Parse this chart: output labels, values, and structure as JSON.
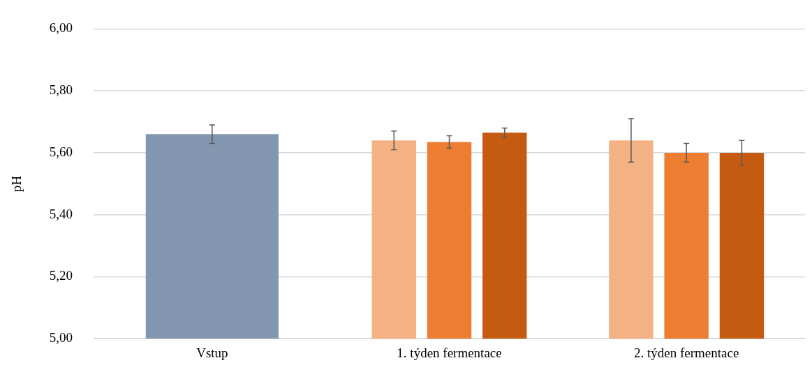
{
  "chart_data": {
    "type": "bar",
    "ylabel": "pH",
    "categories": [
      "Vstup",
      "1. týden fermentace",
      "2. týden fermentace"
    ],
    "series": [
      {
        "color": "#8497b0",
        "values": [
          5.66,
          null,
          null
        ],
        "errors": [
          0.03,
          null,
          null
        ]
      },
      {
        "color": "#f4b183",
        "values": [
          null,
          5.64,
          5.64
        ],
        "errors": [
          null,
          0.03,
          0.07
        ]
      },
      {
        "color": "#ed7d31",
        "values": [
          null,
          5.635,
          5.6
        ],
        "errors": [
          null,
          0.02,
          0.03
        ]
      },
      {
        "color": "#c55a11",
        "values": [
          null,
          5.665,
          5.6
        ],
        "errors": [
          null,
          0.015,
          0.04
        ]
      }
    ],
    "ylim": [
      5,
      6
    ],
    "yticks": [
      {
        "value": 5,
        "label": "5,00"
      },
      {
        "value": 5.2,
        "label": "5,20"
      },
      {
        "value": 5.4,
        "label": "5,40"
      },
      {
        "value": 5.6,
        "label": "5,60"
      },
      {
        "value": 5.8,
        "label": "5,80"
      },
      {
        "value": 6,
        "label": "6,00"
      }
    ],
    "grid": "y",
    "legend": false
  }
}
